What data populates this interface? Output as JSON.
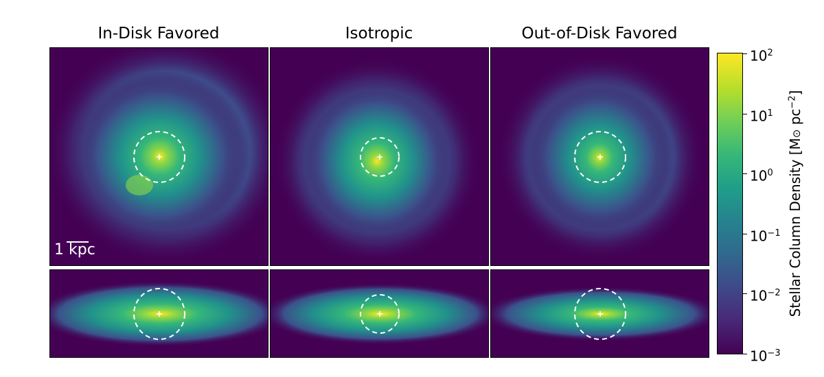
{
  "chart_data": {
    "type": "heatmap",
    "panels": [
      {
        "title": "In-Disk Favored"
      },
      {
        "title": "Isotropic"
      },
      {
        "title": "Out-of-Disk Favored"
      }
    ],
    "views": [
      "face-on",
      "edge-on"
    ],
    "scale_bar": {
      "label": "1 kpc"
    },
    "colorbar": {
      "label": "Stellar Column Density [M⊙ pc−2]",
      "scale": "log",
      "range": [
        0.001,
        100
      ],
      "ticks": [
        {
          "base": "10",
          "exp": "2",
          "value": 100
        },
        {
          "base": "10",
          "exp": "1",
          "value": 10
        },
        {
          "base": "10",
          "exp": "0",
          "value": 1
        },
        {
          "base": "10",
          "exp": "−1",
          "value": 0.1
        },
        {
          "base": "10",
          "exp": "−2",
          "value": 0.01
        },
        {
          "base": "10",
          "exp": "−3",
          "value": 0.001
        }
      ],
      "colormap": "viridis"
    }
  },
  "colors": {
    "background_low": "#440154",
    "circle": "#ffffff"
  }
}
